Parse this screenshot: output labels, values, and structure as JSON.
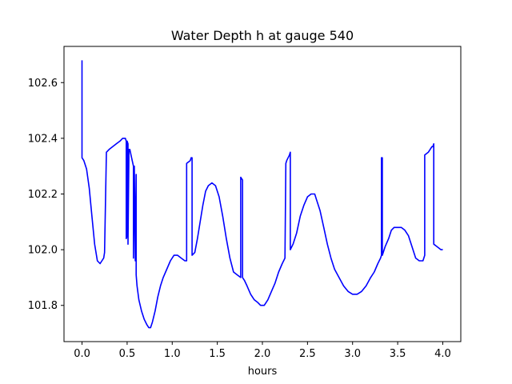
{
  "chart_data": {
    "type": "line",
    "title": "Water Depth h at gauge 540",
    "xlabel": "hours",
    "ylabel": "",
    "xlim": [
      -0.2,
      4.2
    ],
    "ylim": [
      101.67,
      102.73
    ],
    "xticks": [
      0.0,
      0.5,
      1.0,
      1.5,
      2.0,
      2.5,
      3.0,
      3.5,
      4.0
    ],
    "xtick_labels": [
      "0.0",
      "0.5",
      "1.0",
      "1.5",
      "2.0",
      "2.5",
      "3.0",
      "3.5",
      "4.0"
    ],
    "yticks": [
      101.8,
      102.0,
      102.2,
      102.4,
      102.6
    ],
    "ytick_labels": [
      "101.8",
      "102.0",
      "102.2",
      "102.4",
      "102.6"
    ],
    "grid": false,
    "legend": "none",
    "series": [
      {
        "color": "#0000ff",
        "x": [
          0.0,
          0.0,
          0.02,
          0.05,
          0.08,
          0.11,
          0.14,
          0.17,
          0.2,
          0.24,
          0.25,
          0.27,
          0.3,
          0.34,
          0.38,
          0.42,
          0.45,
          0.48,
          0.49,
          0.49,
          0.5,
          0.5,
          0.51,
          0.51,
          0.52,
          0.53,
          0.55,
          0.57,
          0.57,
          0.58,
          0.59,
          0.6,
          0.6,
          0.61,
          0.63,
          0.66,
          0.69,
          0.72,
          0.74,
          0.76,
          0.78,
          0.81,
          0.84,
          0.87,
          0.9,
          0.94,
          0.98,
          1.02,
          1.06,
          1.1,
          1.14,
          1.16,
          1.16,
          1.2,
          1.21,
          1.22,
          1.22,
          1.25,
          1.28,
          1.31,
          1.34,
          1.37,
          1.4,
          1.44,
          1.48,
          1.52,
          1.56,
          1.6,
          1.64,
          1.68,
          1.72,
          1.76,
          1.76,
          1.78,
          1.78,
          1.8,
          1.83,
          1.87,
          1.91,
          1.95,
          1.98,
          2.02,
          2.06,
          2.1,
          2.14,
          2.18,
          2.22,
          2.25,
          2.26,
          2.27,
          2.3,
          2.31,
          2.31,
          2.34,
          2.38,
          2.42,
          2.46,
          2.5,
          2.54,
          2.58,
          2.6,
          2.64,
          2.68,
          2.72,
          2.76,
          2.8,
          2.85,
          2.9,
          2.95,
          3.0,
          3.05,
          3.1,
          3.15,
          3.2,
          3.24,
          3.28,
          3.31,
          3.32,
          3.32,
          3.33,
          3.33,
          3.36,
          3.4,
          3.43,
          3.46,
          3.5,
          3.54,
          3.58,
          3.62,
          3.66,
          3.7,
          3.74,
          3.78,
          3.8,
          3.8,
          3.84,
          3.88,
          3.89,
          3.9,
          3.9,
          3.94,
          3.98,
          4.0
        ],
        "y": [
          102.68,
          102.33,
          102.32,
          102.29,
          102.22,
          102.12,
          102.02,
          101.96,
          101.95,
          101.97,
          101.99,
          102.35,
          102.36,
          102.37,
          102.38,
          102.39,
          102.4,
          102.4,
          102.39,
          102.04,
          102.05,
          102.39,
          102.38,
          102.02,
          102.36,
          102.36,
          102.33,
          102.3,
          101.97,
          102.3,
          101.96,
          102.27,
          101.91,
          101.87,
          101.82,
          101.78,
          101.75,
          101.73,
          101.72,
          101.72,
          101.74,
          101.78,
          101.83,
          101.87,
          101.9,
          101.93,
          101.96,
          101.98,
          101.98,
          101.97,
          101.96,
          101.96,
          102.31,
          102.32,
          102.33,
          102.33,
          101.98,
          101.99,
          102.04,
          102.1,
          102.16,
          102.21,
          102.23,
          102.24,
          102.23,
          102.19,
          102.12,
          102.04,
          101.97,
          101.92,
          101.91,
          101.9,
          102.26,
          102.25,
          101.9,
          101.89,
          101.87,
          101.84,
          101.82,
          101.81,
          101.8,
          101.8,
          101.82,
          101.85,
          101.88,
          101.92,
          101.95,
          101.97,
          102.31,
          102.32,
          102.34,
          102.35,
          102.0,
          102.02,
          102.06,
          102.12,
          102.16,
          102.19,
          102.2,
          102.2,
          102.18,
          102.14,
          102.08,
          102.02,
          101.97,
          101.93,
          101.9,
          101.87,
          101.85,
          101.84,
          101.84,
          101.85,
          101.87,
          101.9,
          101.92,
          101.95,
          101.97,
          101.98,
          102.33,
          102.33,
          101.98,
          102.01,
          102.04,
          102.07,
          102.08,
          102.08,
          102.08,
          102.07,
          102.05,
          102.01,
          101.97,
          101.96,
          101.96,
          101.98,
          102.34,
          102.35,
          102.37,
          102.37,
          102.38,
          102.02,
          102.01,
          102.0,
          102.0
        ]
      }
    ]
  }
}
